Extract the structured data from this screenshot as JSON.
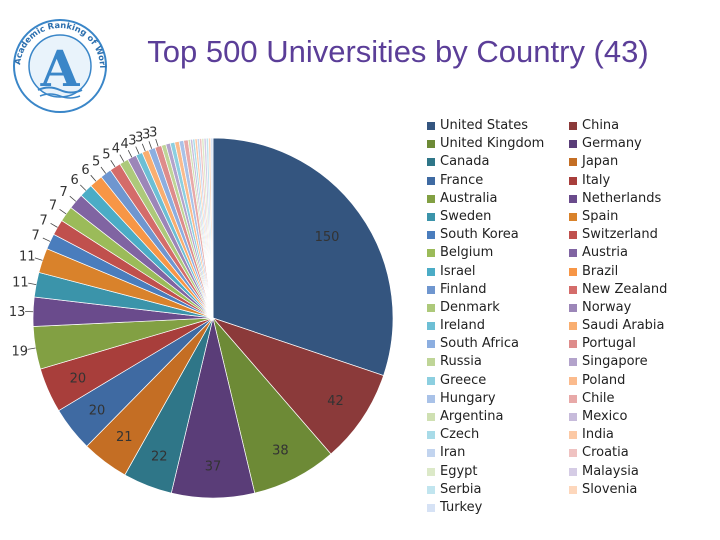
{
  "header": {
    "title": "Top 500 Universities by Country (43)",
    "logo_text": "Academic Ranking of World Universities",
    "logo_letter": "A"
  },
  "chart_data": {
    "type": "pie",
    "title": "Top 500 Universities by Country (43)",
    "legend_placement": "right",
    "slices": [
      {
        "label": "United States",
        "value": 150,
        "color": "#34557f"
      },
      {
        "label": "China",
        "value": 42,
        "color": "#8b3a3a"
      },
      {
        "label": "United Kingdom",
        "value": 38,
        "color": "#6d8a36"
      },
      {
        "label": "Germany",
        "value": 37,
        "color": "#5a3d78"
      },
      {
        "label": "Canada",
        "value": 22,
        "color": "#2f7688"
      },
      {
        "label": "Japan",
        "value": 21,
        "color": "#c46e24"
      },
      {
        "label": "France",
        "value": 20,
        "color": "#3f6aa2"
      },
      {
        "label": "Italy",
        "value": 20,
        "color": "#a83e3b"
      },
      {
        "label": "Australia",
        "value": 19,
        "color": "#82a043"
      },
      {
        "label": "Netherlands",
        "value": 13,
        "color": "#6a4b8c"
      },
      {
        "label": "Sweden",
        "value": 11,
        "color": "#3b94aa"
      },
      {
        "label": "Spain",
        "value": 11,
        "color": "#d9822b"
      },
      {
        "label": "South Korea",
        "value": 7,
        "color": "#4a7dbd"
      },
      {
        "label": "Switzerland",
        "value": 7,
        "color": "#c0504d"
      },
      {
        "label": "Belgium",
        "value": 7,
        "color": "#9bbb59"
      },
      {
        "label": "Austria",
        "value": 7,
        "color": "#8064a2"
      },
      {
        "label": "Israel",
        "value": 6,
        "color": "#4bacc6"
      },
      {
        "label": "Brazil",
        "value": 6,
        "color": "#f79646"
      },
      {
        "label": "Finland",
        "value": 5,
        "color": "#6f96cf"
      },
      {
        "label": "New Zealand",
        "value": 5,
        "color": "#d46c6a"
      },
      {
        "label": "Denmark",
        "value": 4,
        "color": "#adc97a"
      },
      {
        "label": "Norway",
        "value": 4,
        "color": "#9c86b8"
      },
      {
        "label": "Ireland",
        "value": 3,
        "color": "#6dbfd5"
      },
      {
        "label": "Saudi Arabia",
        "value": 3,
        "color": "#f9ae70"
      },
      {
        "label": "South Africa",
        "value": 3,
        "color": "#8caee0"
      },
      {
        "label": "Portugal",
        "value": 3,
        "color": "#de8c8b"
      },
      {
        "label": "Russia",
        "value": 2,
        "color": "#bfd597"
      },
      {
        "label": "Singapore",
        "value": 2,
        "color": "#b3a3cb"
      },
      {
        "label": "Greece",
        "value": 2,
        "color": "#8ccfe0"
      },
      {
        "label": "Poland",
        "value": 2,
        "color": "#fbbb8d"
      },
      {
        "label": "Hungary",
        "value": 2,
        "color": "#a9c2e8"
      },
      {
        "label": "Chile",
        "value": 2,
        "color": "#e8a9a8"
      },
      {
        "label": "Argentina",
        "value": 1,
        "color": "#cfe0b2"
      },
      {
        "label": "Mexico",
        "value": 1,
        "color": "#c7bbdb"
      },
      {
        "label": "Czech",
        "value": 1,
        "color": "#a8dbe8"
      },
      {
        "label": "India",
        "value": 1,
        "color": "#fcc9a5"
      },
      {
        "label": "Iran",
        "value": 1,
        "color": "#c2d4ef"
      },
      {
        "label": "Croatia",
        "value": 1,
        "color": "#efc2c1"
      },
      {
        "label": "Egypt",
        "value": 1,
        "color": "#dce9c8"
      },
      {
        "label": "Malaysia",
        "value": 1,
        "color": "#d5cce5"
      },
      {
        "label": "Serbia",
        "value": 1,
        "color": "#c1e5ef"
      },
      {
        "label": "Slovenia",
        "value": 1,
        "color": "#fdd7bc"
      },
      {
        "label": "Turkey",
        "value": 1,
        "color": "#d6e2f5"
      }
    ],
    "legend_left": [
      "United States",
      "United Kingdom",
      "Canada",
      "France",
      "Australia",
      "Sweden",
      "South Korea",
      "Belgium",
      "Israel",
      "Finland",
      "Denmark",
      "Ireland",
      "South Africa",
      "Russia",
      "Greece",
      "Hungary",
      "Argentina",
      "Czech",
      "Iran",
      "Egypt",
      "Serbia",
      "Turkey"
    ],
    "legend_right": [
      "China",
      "Germany",
      "Japan",
      "Italy",
      "Netherlands",
      "Spain",
      "Switzerland",
      "Austria",
      "Brazil",
      "New Zealand",
      "Norway",
      "Saudi Arabia",
      "Portugal",
      "Singapore",
      "Poland",
      "Chile",
      "Mexico",
      "India",
      "Croatia",
      "Malaysia",
      "Slovenia"
    ]
  }
}
